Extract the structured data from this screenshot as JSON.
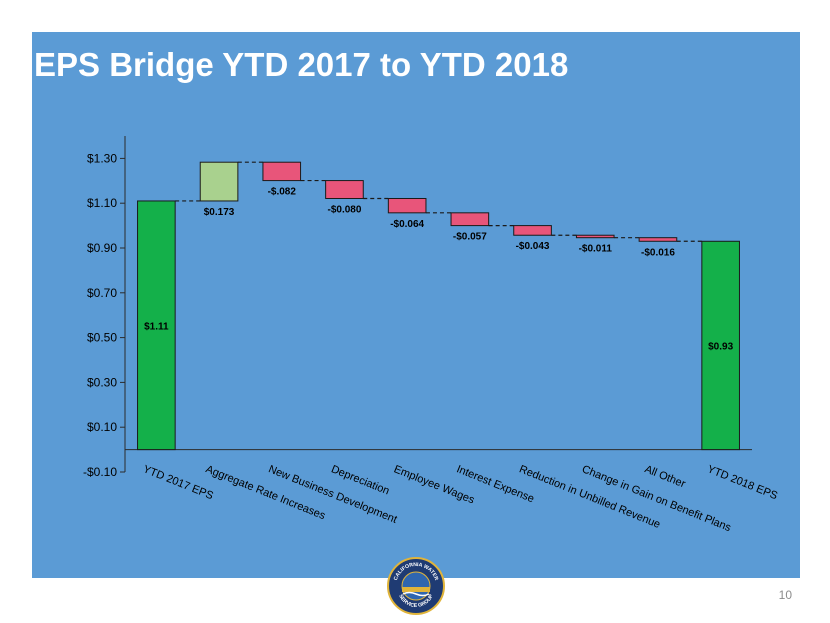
{
  "slide": {
    "title": "EPS Bridge YTD 2017 to YTD 2018",
    "page_number": "10"
  },
  "logo": {
    "top_text": "CALIFORNIA WATER",
    "bottom_text": "SERVICE GROUP"
  },
  "colors": {
    "background": "#5b9bd5",
    "total_bar": "#14b04a",
    "increase_bar": "#a9d18e",
    "decrease_bar": "#e8557a",
    "text": "#000000"
  },
  "chart_data": {
    "type": "waterfall",
    "title": "",
    "xlabel": "",
    "ylabel": "",
    "ylim": [
      -0.1,
      1.4
    ],
    "yticks": [
      -0.1,
      0.1,
      0.3,
      0.5,
      0.7,
      0.9,
      1.1,
      1.3
    ],
    "ytick_labels": [
      "-$0.10",
      "$0.10",
      "$0.30",
      "$0.50",
      "$0.70",
      "$0.90",
      "$1.10",
      "$1.30"
    ],
    "grid": false,
    "legend": "none",
    "bars": [
      {
        "category": "YTD 2017 EPS",
        "kind": "total",
        "value": 1.11,
        "label": "$1.11"
      },
      {
        "category": "Aggregate Rate Increases",
        "kind": "increase",
        "value": 0.173,
        "label": "$0.173"
      },
      {
        "category": "New Business Development",
        "kind": "decrease",
        "value": -0.082,
        "label": "-$.082"
      },
      {
        "category": "Depreciation",
        "kind": "decrease",
        "value": -0.08,
        "label": "-$0.080"
      },
      {
        "category": "Employee Wages",
        "kind": "decrease",
        "value": -0.064,
        "label": "-$0.064"
      },
      {
        "category": "Interest Expense",
        "kind": "decrease",
        "value": -0.057,
        "label": "-$0.057"
      },
      {
        "category": "Reduction in Unbilled Revenue",
        "kind": "decrease",
        "value": -0.043,
        "label": "-$0.043"
      },
      {
        "category": "Change in Gain on Benefit Plans",
        "kind": "decrease",
        "value": -0.011,
        "label": "-$0.011"
      },
      {
        "category": "All Other",
        "kind": "decrease",
        "value": -0.016,
        "label": "-$0.016"
      },
      {
        "category": "YTD 2018 EPS",
        "kind": "total",
        "value": 0.93,
        "label": "$0.93"
      }
    ]
  }
}
